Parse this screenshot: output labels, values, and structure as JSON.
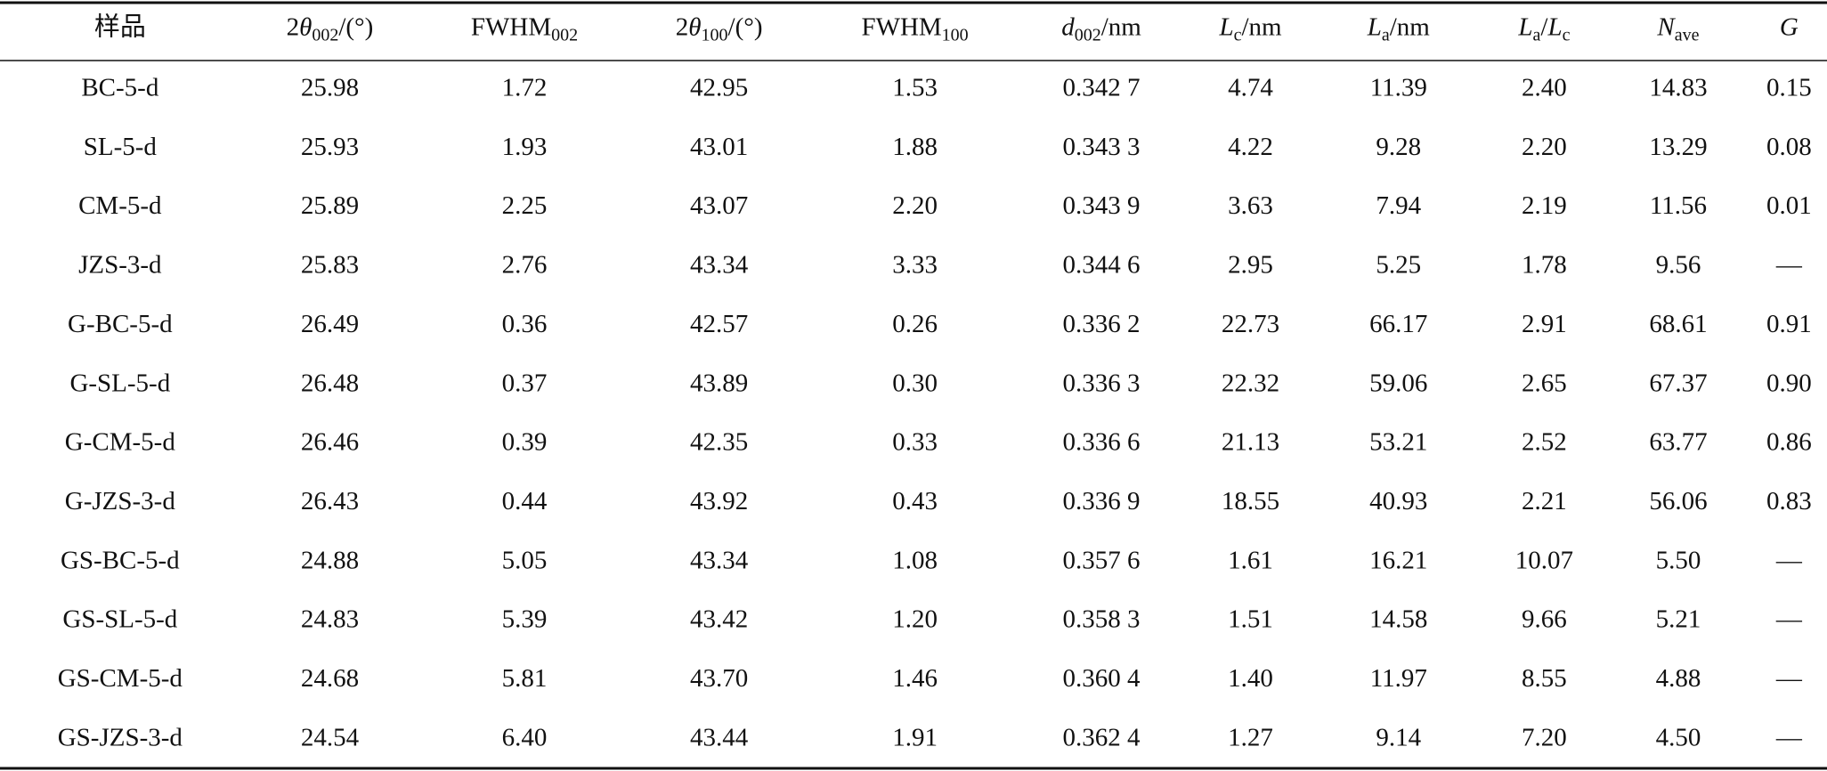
{
  "table": {
    "header": [
      [
        "样品"
      ],
      [
        "2",
        "θ",
        "002",
        "/(°)"
      ],
      [
        "FWHM",
        "002"
      ],
      [
        "2",
        "θ",
        "100",
        "/(°)"
      ],
      [
        "FWHM",
        "100"
      ],
      [
        "d",
        "002",
        "/nm"
      ],
      [
        "L",
        "c",
        "/nm"
      ],
      [
        "L",
        "a",
        "/nm"
      ],
      [
        "L",
        "a",
        "/",
        "L",
        "c"
      ],
      [
        "N",
        "ave"
      ],
      [
        "G"
      ]
    ],
    "rows": [
      [
        "BC-5-d",
        "25.98",
        "1.72",
        "42.95",
        "1.53",
        "0.342 7",
        "4.74",
        "11.39",
        "2.40",
        "14.83",
        "0.15"
      ],
      [
        "SL-5-d",
        "25.93",
        "1.93",
        "43.01",
        "1.88",
        "0.343 3",
        "4.22",
        "9.28",
        "2.20",
        "13.29",
        "0.08"
      ],
      [
        "CM-5-d",
        "25.89",
        "2.25",
        "43.07",
        "2.20",
        "0.343 9",
        "3.63",
        "7.94",
        "2.19",
        "11.56",
        "0.01"
      ],
      [
        "JZS-3-d",
        "25.83",
        "2.76",
        "43.34",
        "3.33",
        "0.344 6",
        "2.95",
        "5.25",
        "1.78",
        "9.56",
        "—"
      ],
      [
        "G-BC-5-d",
        "26.49",
        "0.36",
        "42.57",
        "0.26",
        "0.336 2",
        "22.73",
        "66.17",
        "2.91",
        "68.61",
        "0.91"
      ],
      [
        "G-SL-5-d",
        "26.48",
        "0.37",
        "43.89",
        "0.30",
        "0.336 3",
        "22.32",
        "59.06",
        "2.65",
        "67.37",
        "0.90"
      ],
      [
        "G-CM-5-d",
        "26.46",
        "0.39",
        "42.35",
        "0.33",
        "0.336 6",
        "21.13",
        "53.21",
        "2.52",
        "63.77",
        "0.86"
      ],
      [
        "G-JZS-3-d",
        "26.43",
        "0.44",
        "43.92",
        "0.43",
        "0.336 9",
        "18.55",
        "40.93",
        "2.21",
        "56.06",
        "0.83"
      ],
      [
        "GS-BC-5-d",
        "24.88",
        "5.05",
        "43.34",
        "1.08",
        "0.357 6",
        "1.61",
        "16.21",
        "10.07",
        "5.50",
        "—"
      ],
      [
        "GS-SL-5-d",
        "24.83",
        "5.39",
        "43.42",
        "1.20",
        "0.358 3",
        "1.51",
        "14.58",
        "9.66",
        "5.21",
        "—"
      ],
      [
        "GS-CM-5-d",
        "24.68",
        "5.81",
        "43.70",
        "1.46",
        "0.360 4",
        "1.40",
        "11.97",
        "8.55",
        "4.88",
        "—"
      ],
      [
        "GS-JZS-3-d",
        "24.54",
        "6.40",
        "43.44",
        "1.91",
        "0.362 4",
        "1.27",
        "9.14",
        "7.20",
        "4.50",
        "—"
      ]
    ]
  }
}
